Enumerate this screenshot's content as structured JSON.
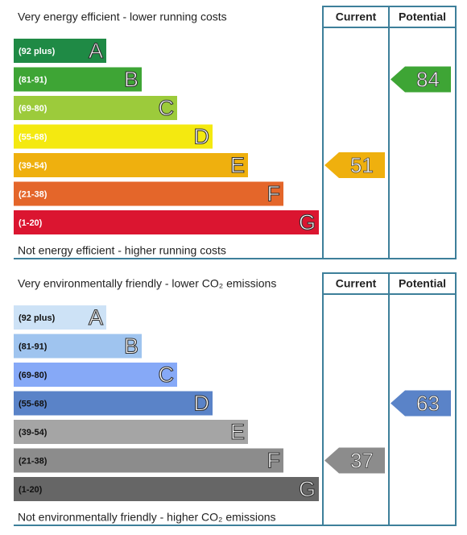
{
  "chart_data": [
    {
      "type": "epc",
      "top_label": "Very energy efficient - lower running costs",
      "bottom_label": "Not energy efficient - higher running costs",
      "current_label": "Current",
      "potential_label": "Potential",
      "label_color": "#ffffff",
      "bands": [
        {
          "range": "(92 plus)",
          "letter": "A",
          "color": "#1f8a45"
        },
        {
          "range": "(81-91)",
          "letter": "B",
          "color": "#3ea535"
        },
        {
          "range": "(69-80)",
          "letter": "C",
          "color": "#9ccb3b"
        },
        {
          "range": "(55-68)",
          "letter": "D",
          "color": "#f4e910"
        },
        {
          "range": "(39-54)",
          "letter": "E",
          "color": "#efb00e"
        },
        {
          "range": "(21-38)",
          "letter": "F",
          "color": "#e4662a"
        },
        {
          "range": "(1-20)",
          "letter": "G",
          "color": "#db1530"
        }
      ],
      "current": {
        "value": 51,
        "color": "#efb00e"
      },
      "potential": {
        "value": 84,
        "color": "#3ea535"
      }
    },
    {
      "type": "epc",
      "top_label": "Very environmentally friendly - lower CO₂ emissions",
      "bottom_label": "Not environmentally friendly - higher CO₂ emissions",
      "current_label": "Current",
      "potential_label": "Potential",
      "label_color": "#111111",
      "bands": [
        {
          "range": "(92 plus)",
          "letter": "A",
          "color": "#cde2f6"
        },
        {
          "range": "(81-91)",
          "letter": "B",
          "color": "#9fc4ef"
        },
        {
          "range": "(69-80)",
          "letter": "C",
          "color": "#86a9f7"
        },
        {
          "range": "(55-68)",
          "letter": "D",
          "color": "#5a83c8"
        },
        {
          "range": "(39-54)",
          "letter": "E",
          "color": "#a5a5a5"
        },
        {
          "range": "(21-38)",
          "letter": "F",
          "color": "#8c8c8c"
        },
        {
          "range": "(1-20)",
          "letter": "G",
          "color": "#666666"
        }
      ],
      "current": {
        "value": 37,
        "color": "#8c8c8c"
      },
      "potential": {
        "value": 63,
        "color": "#5a83c8"
      }
    }
  ]
}
